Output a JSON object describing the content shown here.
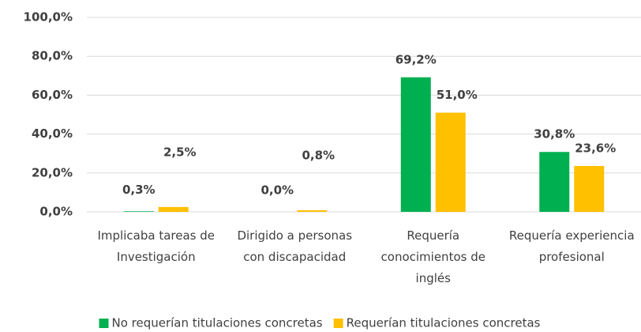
{
  "chart_data": {
    "type": "bar",
    "categories": [
      "Implicaba tareas de Investigación",
      "Dirigido a personas con discapacidad",
      "Requería conocimientos de inglés",
      "Requería experiencia profesional"
    ],
    "series": [
      {
        "name": "No requerían titulaciones concretas",
        "color": "#00b050",
        "values": [
          0.3,
          0.0,
          69.2,
          30.8
        ],
        "value_labels": [
          "0,3%",
          "0,0%",
          "69,2%",
          "30,8%"
        ]
      },
      {
        "name": "Requerían titulaciones concretas",
        "color": "#ffc000",
        "values": [
          2.5,
          0.8,
          51.0,
          23.6
        ],
        "value_labels": [
          "2,5%",
          "0,8%",
          "51,0%",
          "23,6%"
        ]
      }
    ],
    "ylim": [
      0,
      100
    ],
    "yticks": [
      {
        "value": 0,
        "label": "0,0%"
      },
      {
        "value": 20,
        "label": "20,0%"
      },
      {
        "value": 40,
        "label": "40,0%"
      },
      {
        "value": 60,
        "label": "60,0%"
      },
      {
        "value": 80,
        "label": "80,0%"
      },
      {
        "value": 100,
        "label": "100,0%"
      }
    ],
    "grid": true,
    "legend": "bottom"
  }
}
